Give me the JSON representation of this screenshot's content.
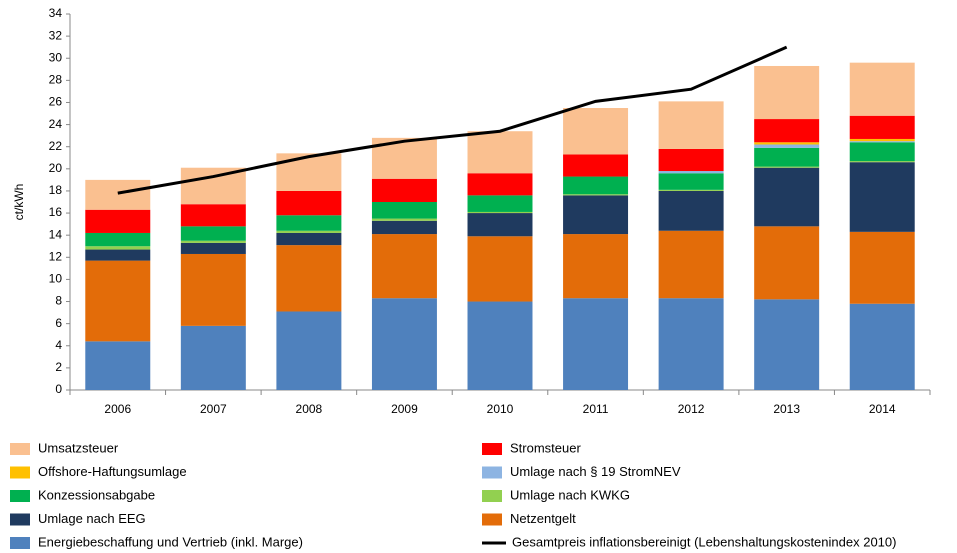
{
  "chart_data": {
    "type": "stacked_bar",
    "y_label": "ct/kWh",
    "categories": [
      "2006",
      "2007",
      "2008",
      "2009",
      "2010",
      "2011",
      "2012",
      "2013",
      "2014"
    ],
    "ylim": [
      0,
      34
    ],
    "yticks": [
      0,
      2,
      4,
      6,
      8,
      10,
      12,
      14,
      16,
      18,
      20,
      22,
      24,
      26,
      28,
      30,
      32,
      34
    ],
    "grid": false,
    "series": [
      {
        "name": "Energiebeschaffung und Vertrieb (inkl. Marge)",
        "color": "#4f81bd",
        "values": [
          4.4,
          5.8,
          7.1,
          8.3,
          8.0,
          8.3,
          8.3,
          8.2,
          7.8
        ]
      },
      {
        "name": "Netzentgelt",
        "color": "#e36c09",
        "values": [
          7.3,
          6.5,
          6.0,
          5.8,
          5.9,
          5.8,
          6.1,
          6.6,
          6.5
        ]
      },
      {
        "name": "Umlage nach EEG",
        "color": "#1f3a5f",
        "values": [
          1.0,
          1.0,
          1.1,
          1.2,
          2.1,
          3.5,
          3.6,
          5.3,
          6.3
        ]
      },
      {
        "name": "Umlage nach KWKG",
        "color": "#92d050",
        "values": [
          0.3,
          0.2,
          0.2,
          0.2,
          0.1,
          0.1,
          0.1,
          0.1,
          0.1
        ]
      },
      {
        "name": "Konzessionsabgabe",
        "color": "#00b050",
        "values": [
          1.2,
          1.3,
          1.4,
          1.5,
          1.5,
          1.6,
          1.5,
          1.7,
          1.7
        ]
      },
      {
        "name": "Umlage nach § 19 StromNEV",
        "color": "#8db4e2",
        "values": [
          0,
          0,
          0,
          0,
          0,
          0,
          0.2,
          0.3,
          0.1
        ]
      },
      {
        "name": "Offshore-Haftungsumlage",
        "color": "#ffc000",
        "values": [
          0,
          0,
          0,
          0,
          0,
          0,
          0,
          0.2,
          0.2
        ]
      },
      {
        "name": "Stromsteuer",
        "color": "#ff0000",
        "values": [
          2.1,
          2.0,
          2.2,
          2.1,
          2.0,
          2.0,
          2.0,
          2.1,
          2.1
        ]
      },
      {
        "name": "Umsatzsteuer",
        "color": "#fac090",
        "values": [
          2.7,
          3.3,
          3.4,
          3.7,
          3.8,
          4.2,
          4.3,
          4.8,
          4.8
        ]
      }
    ],
    "line": {
      "name": "Gesamtpreis inflationsbereinigt (Lebenshaltungskostenindex 2010)",
      "color": "#000000",
      "values": [
        17.8,
        19.3,
        21.1,
        22.5,
        23.4,
        26.1,
        27.2,
        31.0,
        null
      ]
    }
  }
}
